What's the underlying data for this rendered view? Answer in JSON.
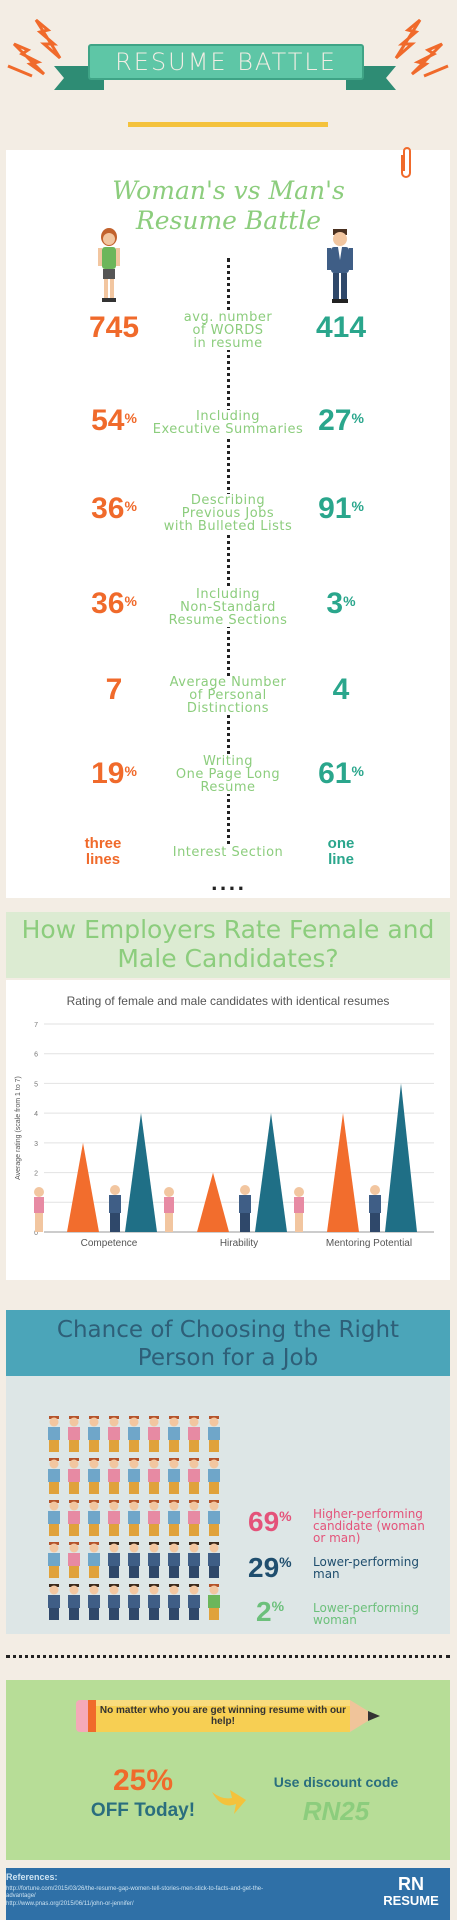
{
  "header": {
    "banner": "RESUME BATTLE"
  },
  "battle": {
    "title_line1": "Woman's vs Man's",
    "title_line2": "Resume Battle",
    "rows": [
      {
        "left": "745",
        "left_pct": "",
        "label": [
          "avg. number",
          "of WORDS",
          "in resume"
        ],
        "right": "414",
        "right_pct": ""
      },
      {
        "left": "54",
        "left_pct": "%",
        "label": [
          "Including",
          "Executive Summaries"
        ],
        "right": "27",
        "right_pct": "%"
      },
      {
        "left": "36",
        "left_pct": "%",
        "label": [
          "Describing",
          "Previous Jobs",
          "with Bulleted Lists"
        ],
        "right": "91",
        "right_pct": "%"
      },
      {
        "left": "36",
        "left_pct": "%",
        "label": [
          "Including",
          "Non-Standard",
          "Resume Sections"
        ],
        "right": "3",
        "right_pct": "%"
      },
      {
        "left": "7",
        "left_pct": "",
        "label": [
          "Average Number",
          "of Personal Distinctions"
        ],
        "right": "4",
        "right_pct": ""
      },
      {
        "left": "19",
        "left_pct": "%",
        "label": [
          "Writing",
          "One Page Long",
          "Resume"
        ],
        "right": "61",
        "right_pct": "%"
      },
      {
        "left": "three lines",
        "left_pct": "",
        "label": [
          "Interest Section"
        ],
        "right": "one line",
        "right_pct": ""
      }
    ],
    "ellipsis": "...."
  },
  "employers": {
    "heading_line1": "How Employers Rate Female and",
    "heading_line2": "Male Candidates?"
  },
  "chart_data": {
    "type": "bar",
    "title": "Rating of female and male candidates with identical resumes",
    "ylabel": "Average rating (scale from 1 to 7)",
    "xlabel": "",
    "ylim": [
      0,
      7
    ],
    "yticks": [
      "0",
      "1",
      "2",
      "3",
      "4",
      "5",
      "6",
      "7"
    ],
    "categories": [
      "Competence",
      "Hirability",
      "Mentoring Potential"
    ],
    "series": [
      {
        "values": [
          3,
          2,
          4
        ],
        "color": "#f26d2d"
      },
      {
        "values": [
          4,
          4,
          5
        ],
        "color": "#1f6f86"
      }
    ],
    "grid": true
  },
  "chance": {
    "heading_line1": "Chance of Choosing the Right",
    "heading_line2": "Person for a Job",
    "stats": [
      {
        "value": "69",
        "pct": "%",
        "color": "#e4537a",
        "label": [
          "Higher-performing",
          "candidate (woman",
          "or man)"
        ]
      },
      {
        "value": "29",
        "pct": "%",
        "color": "#1f4e6e",
        "label": [
          "Lower-performing",
          "man"
        ]
      },
      {
        "value": "2",
        "pct": "%",
        "color": "#6cc07b",
        "label": [
          "Lower-performing",
          "woman"
        ]
      }
    ]
  },
  "promo": {
    "pencil_text": "No matter who you are get winning resume with our help!",
    "discount": "25%",
    "discount_label": "OFF Today!",
    "code_label": "Use discount code",
    "code": "RN25"
  },
  "footer": {
    "ref_title": "References:",
    "refs": [
      "http://fortune.com/2015/03/26/the-resume-gap-women-tell-stories-men-stick-to-facts-and-get-the-",
      "advantage/",
      "http://www.pnas.org/2015/06/11/john-or-jennifer/"
    ],
    "logo_top": "RN",
    "logo_bottom": "RESUME"
  }
}
